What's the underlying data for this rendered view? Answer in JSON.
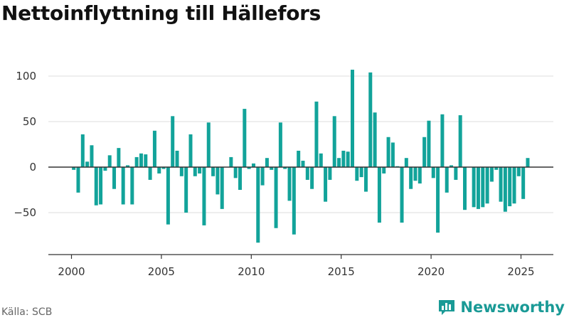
{
  "title": "Nettoinflyttning till Hällefors",
  "source": "Källa: SCB",
  "brand": {
    "name": "Newsworthy",
    "logo_icon": "bar-chart-logo-icon",
    "color": "#1a9a96"
  },
  "colors": {
    "bar": "#12a39a",
    "zero_line": "#333333",
    "grid": "#dddddd",
    "axis": "#333333"
  },
  "chart_data": {
    "type": "bar",
    "title": "Nettoinflyttning till Hällefors",
    "frequency": "quarterly",
    "start": "2000-Q1",
    "x_ticks": [
      "2000",
      "2005",
      "2010",
      "2015",
      "2020",
      "2025"
    ],
    "y_ticks": [
      100,
      50,
      0,
      -50
    ],
    "ylim": [
      -95,
      112
    ],
    "grid": true,
    "legend": "none",
    "values": [
      -3,
      -28,
      36,
      6,
      24,
      -42,
      -41,
      -4,
      13,
      -24,
      21,
      -41,
      2,
      -41,
      11,
      15,
      14,
      -14,
      40,
      -7,
      -2,
      -63,
      56,
      18,
      -10,
      -50,
      36,
      -10,
      -7,
      -64,
      49,
      -10,
      -30,
      -46,
      0,
      11,
      -12,
      -25,
      64,
      -2,
      4,
      -83,
      -20,
      10,
      -3,
      -67,
      49,
      -2,
      -37,
      -74,
      18,
      7,
      -14,
      -24,
      72,
      15,
      -38,
      -14,
      56,
      10,
      18,
      17,
      107,
      -15,
      -11,
      -27,
      104,
      60,
      -61,
      -7,
      33,
      27,
      1,
      -61,
      10,
      -24,
      -15,
      -18,
      33,
      51,
      -12,
      -72,
      58,
      -28,
      2,
      -14,
      57,
      -47,
      0,
      -44,
      -46,
      -44,
      -40,
      -16,
      -3,
      -38,
      -49,
      -43,
      -40,
      -10,
      -35,
      10
    ]
  }
}
